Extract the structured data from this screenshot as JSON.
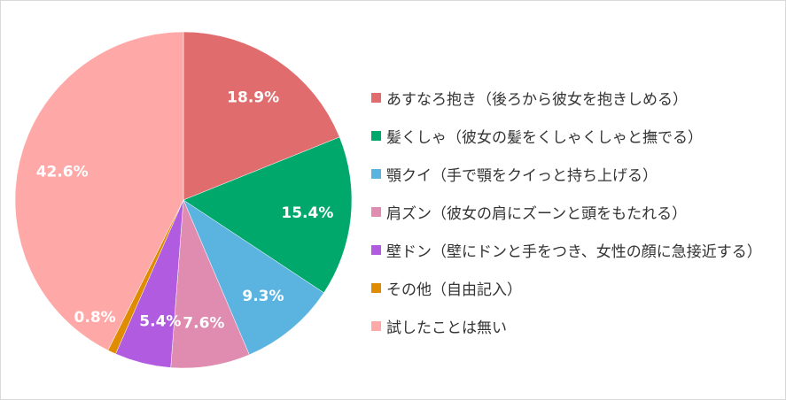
{
  "chart_data": {
    "type": "pie",
    "start": "top",
    "direction": "clockwise",
    "categories": [
      "あすなろ抱き（後ろから彼女を抱きしめる）",
      "髪くしゃ（彼女の髪をくしゃくしゃと撫でる）",
      "顎クイ（手で顎をクイっと持ち上げる）",
      "肩ズン（彼女の肩にズーンと頭をもたれる）",
      "壁ドン（壁にドンと手をつき、女性の顔に急接近する）",
      "その他（自由記入）",
      "試したことは無い"
    ],
    "values": [
      18.9,
      15.4,
      9.3,
      7.6,
      5.4,
      0.8,
      42.6
    ],
    "data_labels": [
      "18.9%",
      "15.4%",
      "9.3%",
      "7.6%",
      "5.4%",
      "0.8%",
      "42.6%"
    ],
    "colors": [
      "#E06C6E",
      "#00A86B",
      "#5BB4E0",
      "#E08BB0",
      "#B05BE0",
      "#E08C00",
      "#FFA8A8"
    ],
    "legend": "right"
  }
}
